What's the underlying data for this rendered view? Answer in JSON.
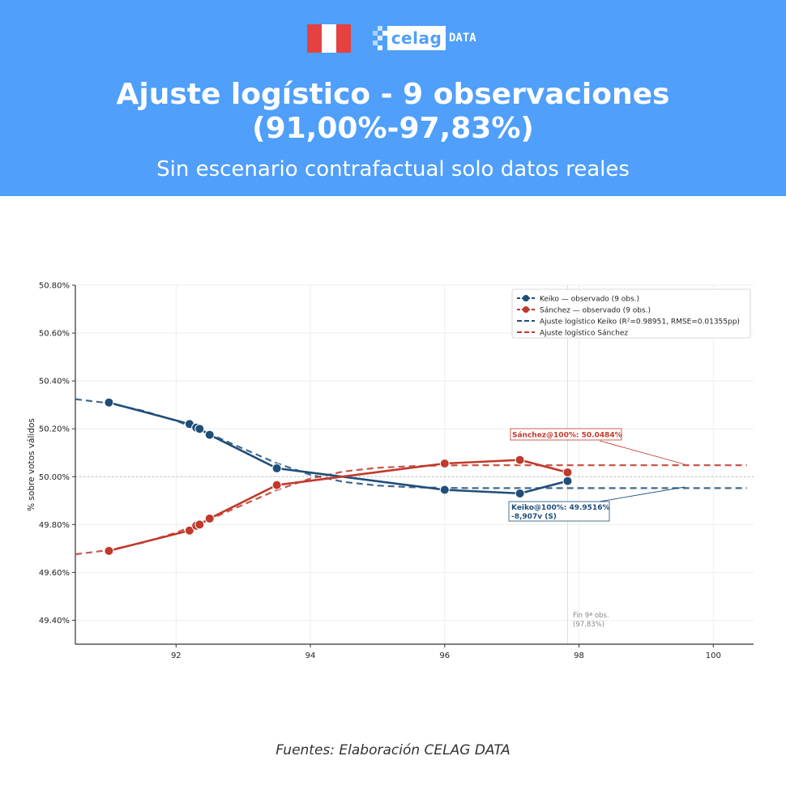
{
  "header": {
    "logo_word": "celag",
    "logo_suffix": "DATA",
    "title_line1": "Ajuste logístico - 9 observaciones",
    "title_line2": "(91,00%-97,83%)",
    "subtitle": "Sin escenario contrafactual solo datos reales"
  },
  "colors": {
    "banner": "#4f9ffb",
    "keiko": "#1f4e79",
    "sanchez": "#c0392b",
    "flag_red": "#e64141"
  },
  "chart_data": {
    "type": "line",
    "ylabel": "% sobre votos válidos",
    "xlabel": "",
    "xlim": [
      90.5,
      100.6
    ],
    "ylim": [
      49.3,
      50.8
    ],
    "x_ticks": [
      92,
      94,
      96,
      98,
      100
    ],
    "y_ticks": [
      49.4,
      49.6,
      49.8,
      50.0,
      50.2,
      50.4,
      50.6,
      50.8
    ],
    "y_tick_labels": [
      "49.40%",
      "49.60%",
      "49.80%",
      "50.00%",
      "50.20%",
      "50.40%",
      "50.60%",
      "50.80%"
    ],
    "grid": true,
    "reference_line": 50.0,
    "vline_x": 97.83,
    "legend_position": "top-right",
    "series": [
      {
        "name": "Keiko — observado (9 obs.)",
        "color": "#1f4e79",
        "x": [
          91.0,
          92.2,
          92.3,
          92.35,
          92.5,
          93.5,
          96.0,
          97.12,
          97.83
        ],
        "y": [
          50.31,
          50.22,
          50.205,
          50.2,
          50.175,
          50.035,
          49.945,
          49.93,
          49.982
        ]
      },
      {
        "name": "Sánchez — observado (9 obs.)",
        "color": "#c0392b",
        "x": [
          91.0,
          92.2,
          92.3,
          92.35,
          92.5,
          93.5,
          96.0,
          97.12,
          97.83
        ],
        "y": [
          49.69,
          49.775,
          49.795,
          49.8,
          49.825,
          49.965,
          50.055,
          50.07,
          50.018
        ]
      },
      {
        "name": "Ajuste logístico Keiko (R²=0.98951, RMSE=0.01355pp)",
        "color": "#1f4e79",
        "style": "dashed",
        "x": [
          90.5,
          91.0,
          91.5,
          92.0,
          92.5,
          93.0,
          93.5,
          94.0,
          94.5,
          95.0,
          95.5,
          96.0,
          96.5,
          97.0,
          97.5,
          98.0,
          99.0,
          100.0,
          100.5
        ],
        "y": [
          50.324,
          50.307,
          50.276,
          50.234,
          50.179,
          50.117,
          50.056,
          50.008,
          49.978,
          49.963,
          49.956,
          49.953,
          49.952,
          49.952,
          49.952,
          49.952,
          49.952,
          49.952,
          49.952
        ]
      },
      {
        "name": "Ajuste logístico Sánchez",
        "color": "#c0392b",
        "style": "dashed",
        "x": [
          90.5,
          91.0,
          91.5,
          92.0,
          92.5,
          93.0,
          93.5,
          94.0,
          94.5,
          95.0,
          95.5,
          96.0,
          96.5,
          97.0,
          97.5,
          98.0,
          99.0,
          100.0,
          100.5
        ],
        "y": [
          49.676,
          49.693,
          49.724,
          49.766,
          49.821,
          49.883,
          49.944,
          49.992,
          50.022,
          50.037,
          50.044,
          50.047,
          50.048,
          50.048,
          50.048,
          50.048,
          50.048,
          50.048,
          50.048
        ]
      }
    ],
    "annotations": [
      {
        "text": "Sánchez@100%: 50.0484%",
        "color": "#c0392b"
      },
      {
        "text": "Keiko@100%: 49.9516%",
        "text2": "-8,907v (S)",
        "color": "#1f4e79"
      },
      {
        "text": "Fin 9ª obs.",
        "text2": "(97.83%)",
        "color": "#888888"
      }
    ]
  },
  "footer": {
    "source": "Fuentes: Elaboración CELAG DATA"
  }
}
